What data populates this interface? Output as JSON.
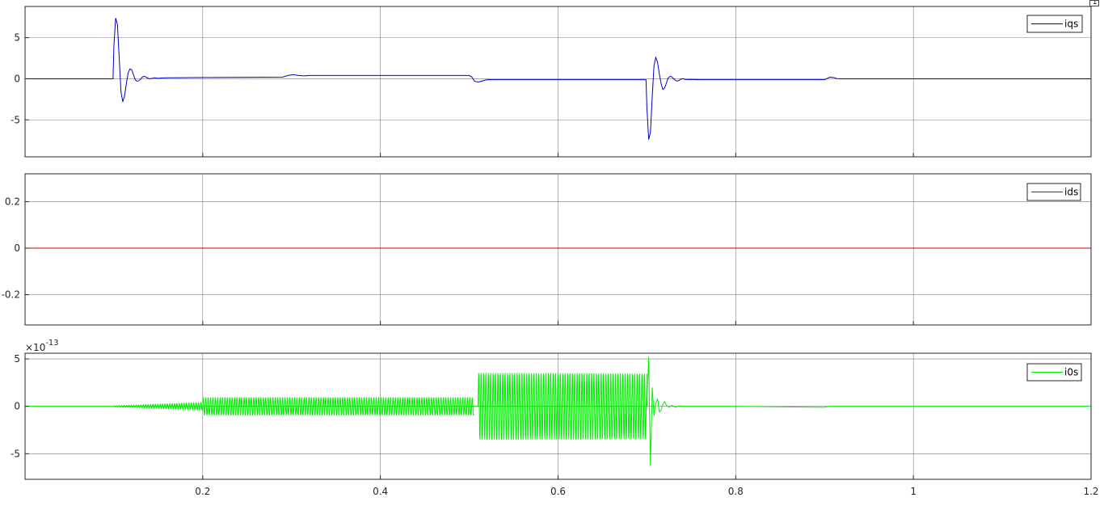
{
  "colors": {
    "background": "#ffffff",
    "axes_edge": "#262626",
    "grid": "#7f7f7f"
  },
  "toolbar": {
    "restore_icon": "restore-axes-icon"
  },
  "chart_data": [
    {
      "type": "line",
      "id": "iqs",
      "xlim": [
        0,
        1.2
      ],
      "ylim": [
        -9.5,
        8.8
      ],
      "xticks": [
        0.2,
        0.4,
        0.6,
        0.8,
        1.0
      ],
      "xtick_labels": [],
      "yticks": [
        5,
        0,
        -5
      ],
      "ytick_labels": [
        "5",
        "0",
        "-5"
      ],
      "exponent_label": "",
      "grid": true,
      "legend": "top-right",
      "series": [
        {
          "name": "iqs",
          "color": "#0000cc",
          "x": [
            0,
            0.099,
            0.1,
            0.102,
            0.104,
            0.106,
            0.108,
            0.11,
            0.112,
            0.114,
            0.116,
            0.118,
            0.12,
            0.122,
            0.124,
            0.126,
            0.128,
            0.13,
            0.132,
            0.134,
            0.136,
            0.138,
            0.14,
            0.143,
            0.146,
            0.15,
            0.155,
            0.16,
            0.2,
            0.29,
            0.296,
            0.302,
            0.308,
            0.314,
            0.32,
            0.5,
            0.503,
            0.506,
            0.51,
            0.514,
            0.518,
            0.522,
            0.526,
            0.53,
            0.699,
            0.7,
            0.702,
            0.704,
            0.706,
            0.708,
            0.71,
            0.712,
            0.714,
            0.716,
            0.718,
            0.72,
            0.722,
            0.724,
            0.726,
            0.728,
            0.73,
            0.732,
            0.734,
            0.736,
            0.738,
            0.74,
            0.743,
            0.746,
            0.75,
            0.755,
            0.76,
            0.9,
            0.903,
            0.906,
            0.91,
            0.914,
            0.92,
            1.2
          ],
          "y": [
            0,
            0,
            4.0,
            7.4,
            6.6,
            2.5,
            -1.6,
            -2.8,
            -2.1,
            -0.6,
            0.7,
            1.2,
            1.1,
            0.5,
            -0.1,
            -0.3,
            -0.25,
            -0.05,
            0.2,
            0.3,
            0.22,
            0.08,
            0,
            0.05,
            0.12,
            0.05,
            0.1,
            0.12,
            0.15,
            0.2,
            0.4,
            0.5,
            0.4,
            0.35,
            0.4,
            0.4,
            0.2,
            -0.3,
            -0.4,
            -0.3,
            -0.15,
            -0.1,
            -0.12,
            -0.12,
            -0.12,
            -3.5,
            -7.4,
            -6.5,
            -2.2,
            1.6,
            2.6,
            2.0,
            0.6,
            -0.6,
            -1.3,
            -1.1,
            -0.5,
            0.1,
            0.3,
            0.22,
            0.02,
            -0.18,
            -0.28,
            -0.22,
            -0.06,
            0,
            -0.08,
            -0.1,
            -0.08,
            -0.1,
            -0.12,
            -0.12,
            0.05,
            0.2,
            0.15,
            0.02,
            0,
            0
          ]
        }
      ]
    },
    {
      "type": "line",
      "id": "ids",
      "xlim": [
        0,
        1.2
      ],
      "ylim": [
        -0.33,
        0.32
      ],
      "xticks": [
        0.2,
        0.4,
        0.6,
        0.8,
        1.0
      ],
      "xtick_labels": [],
      "yticks": [
        0.2,
        0,
        -0.2
      ],
      "ytick_labels": [
        "0.2",
        "0",
        "-0.2"
      ],
      "exponent_label": "",
      "grid": true,
      "legend": "top-right",
      "series": [
        {
          "name": "ids",
          "color": "#cc0000",
          "x": [
            0,
            1.2
          ],
          "y": [
            0,
            0
          ]
        }
      ]
    },
    {
      "type": "line",
      "id": "i0s",
      "xlim": [
        0,
        1.2
      ],
      "ylim": [
        -7.7,
        5.6
      ],
      "xticks": [
        0.2,
        0.4,
        0.6,
        0.8,
        1.0
      ],
      "xtick_labels": [
        "0.2",
        "0.4",
        "0.6",
        "0.8",
        "1",
        "1.2"
      ],
      "xtick_label_positions": [
        0.2,
        0.4,
        0.6,
        0.8,
        1.0,
        1.2
      ],
      "yticks": [
        5,
        0,
        -5
      ],
      "ytick_labels": [
        "5",
        "0",
        "-5"
      ],
      "exponent_label": "×10",
      "exponent_power": "-13",
      "grid": true,
      "legend": "top-right",
      "series": [
        {
          "name": "i0s",
          "color": "#00ee00",
          "segments": [
            {
              "x0": 0.1,
              "x1": 0.2,
              "amp_start": 0.05,
              "amp_end": 0.4,
              "freq": 370
            },
            {
              "x0": 0.2,
              "x1": 0.505,
              "amp_start": 0.95,
              "amp_end": 0.95,
              "freq": 370
            },
            {
              "x0": 0.51,
              "x1": 0.7,
              "amp_start": 3.5,
              "amp_end": 3.5,
              "freq": 370
            }
          ],
          "x": [
            0,
            0.1,
            0.7,
            0.702,
            0.704,
            0.706,
            0.708,
            0.71,
            0.712,
            0.714,
            0.716,
            0.718,
            0.72,
            0.722,
            0.725,
            0.728,
            0.732,
            0.736,
            0.74,
            0.79,
            0.9,
            0.905,
            1.2
          ],
          "y": [
            0,
            0,
            0,
            5.2,
            -6.3,
            2.0,
            -1.0,
            0.3,
            0.8,
            -0.6,
            -0.4,
            0.2,
            0.5,
            0.1,
            -0.1,
            0.1,
            -0.1,
            0.05,
            0,
            0,
            -0.1,
            0,
            0
          ]
        }
      ]
    }
  ]
}
